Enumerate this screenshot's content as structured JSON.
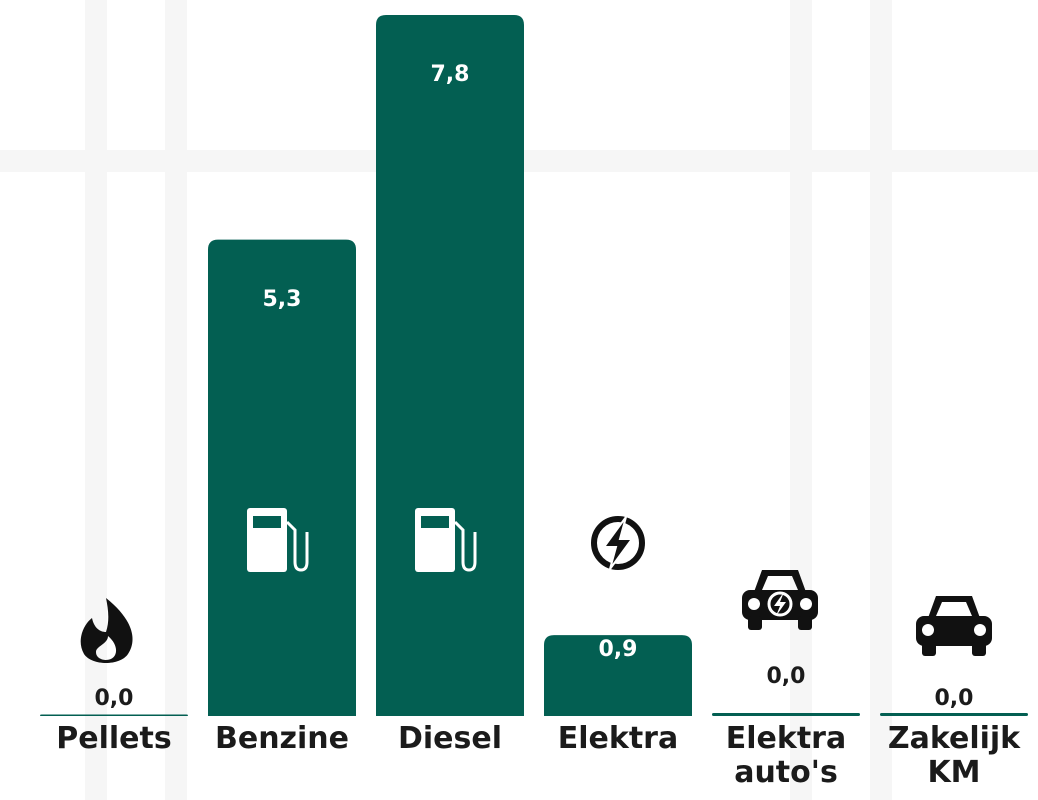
{
  "chart_data": {
    "type": "bar",
    "categories": [
      "Pellets",
      "Benzine",
      "Diesel",
      "Elektra",
      "Elektra auto's",
      "Zakelijk KM"
    ],
    "values": [
      0,
      5.3,
      7.8,
      0.9,
      0,
      0
    ],
    "value_labels": [
      "0,0",
      "5,3",
      "7,8",
      "0,9",
      "0,0",
      "0,0"
    ],
    "color": "#035f52"
  }
}
